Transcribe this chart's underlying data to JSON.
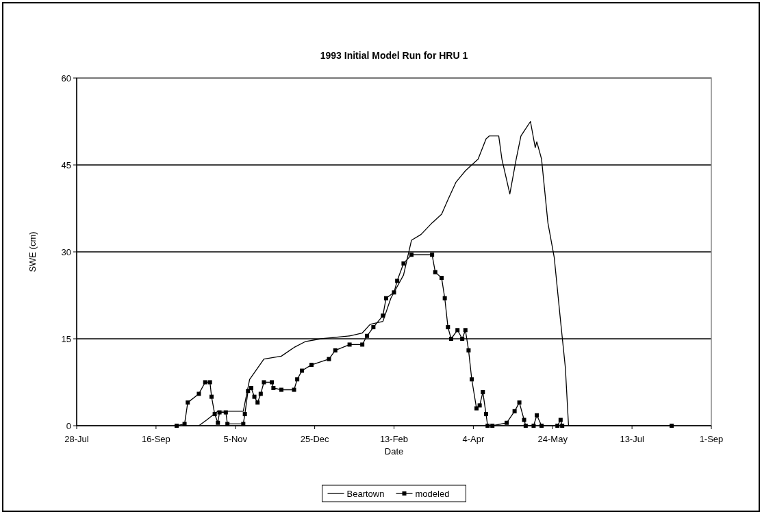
{
  "chart_data": {
    "type": "line",
    "title": "1993 Initial Model Run for HRU 1",
    "xlabel": "Date",
    "ylabel": "SWE (cm)",
    "xlim": [
      "1992-07-28",
      "1993-09-01"
    ],
    "xticks": [
      {
        "value": "1992-07-28",
        "label": "28-Jul"
      },
      {
        "value": "1992-09-16",
        "label": "16-Sep"
      },
      {
        "value": "1992-11-05",
        "label": "5-Nov"
      },
      {
        "value": "1992-12-25",
        "label": "25-Dec"
      },
      {
        "value": "1993-02-13",
        "label": "13-Feb"
      },
      {
        "value": "1993-04-04",
        "label": "4-Apr"
      },
      {
        "value": "1993-05-24",
        "label": "24-May"
      },
      {
        "value": "1993-07-13",
        "label": "13-Jul"
      },
      {
        "value": "1993-09-01",
        "label": "1-Sep"
      }
    ],
    "ylim": [
      0,
      60
    ],
    "yticks": [
      0,
      15,
      30,
      45,
      60
    ],
    "grid": "y",
    "legend": "bottom",
    "line_style": "solid",
    "series": [
      {
        "name": "Beartown",
        "color": "#000000",
        "marker": "none",
        "x": [
          "1992-10-13",
          "1992-10-18",
          "1992-10-25",
          "1992-11-02",
          "1992-11-10",
          "1992-11-14",
          "1992-11-23",
          "1992-12-04",
          "1992-12-12",
          "1992-12-19",
          "1992-12-29",
          "1993-01-16",
          "1993-01-24",
          "1993-01-29",
          "1993-02-06",
          "1993-02-11",
          "1993-02-15",
          "1993-02-19",
          "1993-02-24",
          "1993-03-02",
          "1993-03-09",
          "1993-03-15",
          "1993-03-19",
          "1993-03-24",
          "1993-03-30",
          "1993-04-07",
          "1993-04-12",
          "1993-04-14",
          "1993-04-20",
          "1993-04-22",
          "1993-04-27",
          "1993-05-01",
          "1993-05-04",
          "1993-05-10",
          "1993-05-13",
          "1993-05-14",
          "1993-05-17",
          "1993-05-21",
          "1993-05-25",
          "1993-05-29",
          "1993-06-01",
          "1993-06-03",
          "1993-08-07"
        ],
        "values": [
          0,
          1,
          2.5,
          2.5,
          2.5,
          8,
          11.5,
          12,
          13.5,
          14.5,
          15,
          15.5,
          16,
          17.5,
          18,
          22,
          24,
          26,
          32,
          33,
          35,
          36.5,
          39,
          42,
          44,
          46,
          49.5,
          50,
          50,
          46,
          40,
          46,
          50,
          52.5,
          48,
          49,
          46,
          35,
          29,
          18,
          10,
          0,
          0
        ]
      },
      {
        "name": "modeled",
        "color": "#000000",
        "marker": "square",
        "x": [
          "1992-09-29",
          "1992-10-04",
          "1992-10-06",
          "1992-10-13",
          "1992-10-17",
          "1992-10-20",
          "1992-10-21",
          "1992-10-23",
          "1992-10-25",
          "1992-10-26",
          "1992-10-30",
          "1992-10-31",
          "1992-11-10",
          "1992-11-11",
          "1992-11-13",
          "1992-11-15",
          "1992-11-17",
          "1992-11-19",
          "1992-11-21",
          "1992-11-23",
          "1992-11-28",
          "1992-11-29",
          "1992-12-04",
          "1992-12-12",
          "1992-12-14",
          "1992-12-17",
          "1992-12-23",
          "1993-01-03",
          "1993-01-07",
          "1993-01-16",
          "1993-01-24",
          "1993-01-27",
          "1993-01-31",
          "1993-02-06",
          "1993-02-08",
          "1993-02-13",
          "1993-02-15",
          "1993-02-19",
          "1993-02-24",
          "1993-03-09",
          "1993-03-11",
          "1993-03-15",
          "1993-03-17",
          "1993-03-19",
          "1993-03-21",
          "1993-03-25",
          "1993-03-28",
          "1993-03-30",
          "1993-04-01",
          "1993-04-03",
          "1993-04-06",
          "1993-04-08",
          "1993-04-10",
          "1993-04-12",
          "1993-04-13",
          "1993-04-16",
          "1993-04-25",
          "1993-04-30",
          "1993-05-03",
          "1993-05-06",
          "1993-05-07",
          "1993-05-12",
          "1993-05-14",
          "1993-05-17",
          "1993-05-27",
          "1993-05-29",
          "1993-05-30",
          "1993-08-07"
        ],
        "values": [
          0,
          0.3,
          4,
          5.5,
          7.5,
          7.5,
          5,
          2,
          0.5,
          2.3,
          2.3,
          0.3,
          0.3,
          2,
          6,
          6.5,
          5,
          4,
          5.5,
          7.5,
          7.5,
          6.5,
          6.2,
          6.2,
          8,
          9.5,
          10.5,
          11.5,
          13,
          14,
          14,
          15.5,
          17,
          19,
          22,
          23,
          25,
          28,
          29.5,
          29.5,
          26.5,
          25.5,
          22,
          17,
          15,
          16.5,
          15,
          16.5,
          13,
          8,
          3,
          3.5,
          5.8,
          2,
          0,
          0,
          0.5,
          2.5,
          4,
          1,
          0,
          0,
          1.8,
          0,
          0,
          1,
          0,
          0
        ]
      }
    ]
  }
}
